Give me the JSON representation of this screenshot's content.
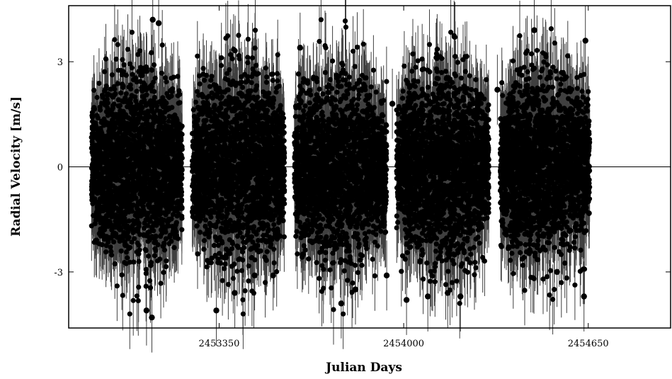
{
  "chart_data": {
    "type": "scatter",
    "title": "",
    "xlabel": "Julian Days",
    "ylabel": "Radial Velocity [m/s]",
    "xlim": [
      2452820,
      2454940
    ],
    "ylim": [
      -4.6,
      4.6
    ],
    "xticks": [
      2453350,
      2454000,
      2454650
    ],
    "yticks": [
      -3,
      0,
      3
    ],
    "grid": false,
    "zero_line": true,
    "marker_color": "#000000",
    "errorbar_color": "#000000",
    "errorbar": 1.0,
    "series": [
      {
        "observing_seasons": [
          [
            2452900,
            2453220
          ],
          [
            2453255,
            2453580
          ],
          [
            2453615,
            2453940
          ],
          [
            2453975,
            2454300
          ],
          [
            2454340,
            2454655
          ]
        ],
        "approx_scatter_sd": 1.3,
        "points": [
          {
            "x": 2453116,
            "y": 4.2
          },
          {
            "x": 2453137,
            "y": 4.1
          },
          {
            "x": 2453094,
            "y": -4.1
          },
          {
            "x": 2453113,
            "y": -4.3
          },
          {
            "x": 2453340,
            "y": -4.1
          },
          {
            "x": 2453405,
            "y": -3.6
          },
          {
            "x": 2453475,
            "y": -3.1
          },
          {
            "x": 2453540,
            "y": -3.1
          },
          {
            "x": 2453635,
            "y": 3.4
          },
          {
            "x": 2453645,
            "y": -2.5
          },
          {
            "x": 2453780,
            "y": -3.9
          },
          {
            "x": 2453830,
            "y": -3.5
          },
          {
            "x": 2453940,
            "y": -3.1
          },
          {
            "x": 2453960,
            "y": 1.8
          },
          {
            "x": 2454010,
            "y": -3.8
          },
          {
            "x": 2454085,
            "y": -3.7
          },
          {
            "x": 2454155,
            "y": -3.6
          },
          {
            "x": 2454200,
            "y": -3.7
          },
          {
            "x": 2454330,
            "y": 2.2
          },
          {
            "x": 2454370,
            "y": -2.3
          },
          {
            "x": 2454460,
            "y": 3.9
          },
          {
            "x": 2454540,
            "y": -3.0
          },
          {
            "x": 2454640,
            "y": 3.6
          },
          {
            "x": 2454635,
            "y": -3.7
          }
        ]
      }
    ]
  }
}
